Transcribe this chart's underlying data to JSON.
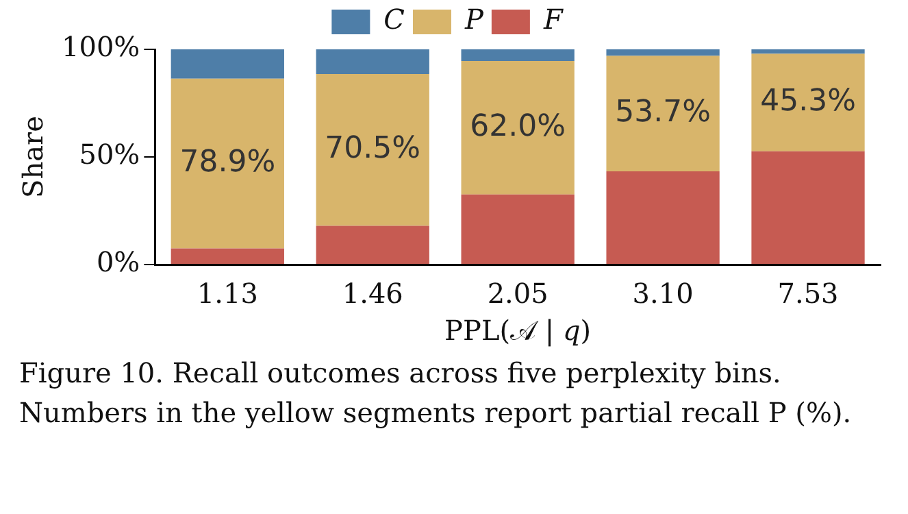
{
  "chart_data": {
    "type": "bar",
    "stacked": true,
    "categories": [
      "1.13",
      "1.46",
      "2.05",
      "3.10",
      "7.53"
    ],
    "xlabel": "PPL(𝒜 | 𝑞)",
    "ylabel": "Share",
    "ylim": [
      0,
      100
    ],
    "yticks": [
      {
        "value": 0,
        "label": "0%"
      },
      {
        "value": 50,
        "label": "50%"
      },
      {
        "value": 100,
        "label": "100%"
      }
    ],
    "grid": false,
    "legend": "top",
    "series": [
      {
        "name": "F",
        "color": "#c65b52",
        "values": [
          7.5,
          18.0,
          32.6,
          43.3,
          52.6
        ]
      },
      {
        "name": "P",
        "color": "#d8b56b",
        "values": [
          78.9,
          70.5,
          62.0,
          53.7,
          45.3
        ],
        "value_labels": [
          "78.9%",
          "70.5%",
          "62.0%",
          "53.7%",
          "45.3%"
        ]
      },
      {
        "name": "C",
        "color": "#4e7ea8",
        "values": [
          13.6,
          11.5,
          5.4,
          3.0,
          2.1
        ]
      }
    ],
    "annotations": [
      "Figure 10. Recall outcomes across five perplexity bins. Numbers in the yellow segments report partial recall P (%)."
    ]
  }
}
